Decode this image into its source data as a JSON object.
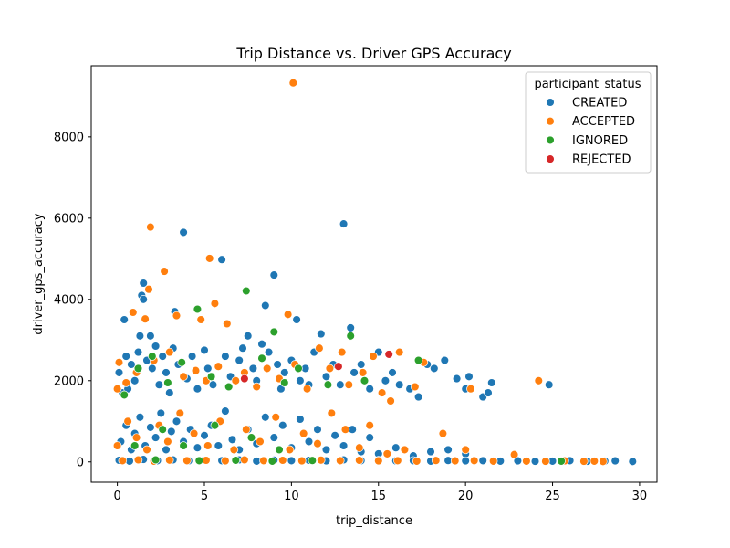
{
  "chart_data": {
    "type": "scatter",
    "title": "Trip Distance vs. Driver GPS Accuracy",
    "xlabel": "trip_distance",
    "ylabel": "driver_gps_accuracy",
    "xlim": [
      -1.5,
      31.0
    ],
    "ylim": [
      -500,
      9750
    ],
    "x_ticks": [
      0,
      5,
      10,
      15,
      20,
      25,
      30
    ],
    "y_ticks": [
      0,
      2000,
      4000,
      6000,
      8000
    ],
    "grid": false,
    "legend": {
      "title": "participant_status",
      "placement": "top-right",
      "entries": [
        "CREATED",
        "ACCEPTED",
        "IGNORED",
        "REJECTED"
      ]
    },
    "colors": {
      "CREATED": "#1f77b4",
      "ACCEPTED": "#ff7f0e",
      "IGNORED": "#2ca02c",
      "REJECTED": "#d62728"
    },
    "series": [
      {
        "name": "CREATED",
        "points": [
          [
            0.1,
            2200
          ],
          [
            0.3,
            1700
          ],
          [
            0.4,
            3500
          ],
          [
            0.5,
            2600
          ],
          [
            0.6,
            1800
          ],
          [
            0.8,
            2400
          ],
          [
            1.0,
            2000
          ],
          [
            1.2,
            2700
          ],
          [
            1.3,
            3100
          ],
          [
            1.4,
            4100
          ],
          [
            1.5,
            4400
          ],
          [
            1.5,
            4000
          ],
          [
            1.7,
            2500
          ],
          [
            1.9,
            3100
          ],
          [
            2.0,
            2300
          ],
          [
            2.2,
            2850
          ],
          [
            2.4,
            1900
          ],
          [
            2.6,
            2600
          ],
          [
            2.8,
            2200
          ],
          [
            3.0,
            1700
          ],
          [
            3.2,
            2800
          ],
          [
            3.3,
            3700
          ],
          [
            3.5,
            2400
          ],
          [
            3.8,
            5650
          ],
          [
            4.0,
            2050
          ],
          [
            4.3,
            2600
          ],
          [
            4.6,
            1800
          ],
          [
            5.0,
            2750
          ],
          [
            5.2,
            2300
          ],
          [
            5.5,
            1900
          ],
          [
            6.0,
            4980
          ],
          [
            6.2,
            2600
          ],
          [
            6.5,
            2100
          ],
          [
            7.0,
            2500
          ],
          [
            7.2,
            2800
          ],
          [
            7.5,
            3100
          ],
          [
            7.8,
            2300
          ],
          [
            8.0,
            2000
          ],
          [
            8.3,
            2900
          ],
          [
            8.5,
            3850
          ],
          [
            8.7,
            2700
          ],
          [
            9.0,
            4600
          ],
          [
            9.2,
            2400
          ],
          [
            9.4,
            1800
          ],
          [
            9.6,
            2200
          ],
          [
            10.0,
            2500
          ],
          [
            10.3,
            3500
          ],
          [
            10.5,
            2000
          ],
          [
            10.8,
            2300
          ],
          [
            11.0,
            1900
          ],
          [
            11.3,
            2700
          ],
          [
            11.7,
            3150
          ],
          [
            12.0,
            2100
          ],
          [
            12.4,
            2400
          ],
          [
            12.8,
            1900
          ],
          [
            13.0,
            5860
          ],
          [
            13.4,
            3300
          ],
          [
            13.6,
            2200
          ],
          [
            14.0,
            2400
          ],
          [
            14.5,
            1800
          ],
          [
            15.0,
            2700
          ],
          [
            15.4,
            2000
          ],
          [
            15.8,
            2200
          ],
          [
            16.2,
            1900
          ],
          [
            16.8,
            1800
          ],
          [
            17.3,
            1600
          ],
          [
            17.8,
            2400
          ],
          [
            18.2,
            2300
          ],
          [
            18.8,
            2500
          ],
          [
            19.5,
            2050
          ],
          [
            20.0,
            1800
          ],
          [
            20.2,
            2100
          ],
          [
            21.0,
            1600
          ],
          [
            21.3,
            1700
          ],
          [
            21.5,
            1950
          ],
          [
            24.8,
            1900
          ],
          [
            0.2,
            500
          ],
          [
            0.5,
            900
          ],
          [
            0.8,
            300
          ],
          [
            1.0,
            700
          ],
          [
            1.3,
            1100
          ],
          [
            1.6,
            400
          ],
          [
            1.9,
            850
          ],
          [
            2.2,
            600
          ],
          [
            2.5,
            1200
          ],
          [
            2.8,
            300
          ],
          [
            3.1,
            750
          ],
          [
            3.4,
            1000
          ],
          [
            3.8,
            500
          ],
          [
            4.2,
            800
          ],
          [
            4.6,
            350
          ],
          [
            5.0,
            650
          ],
          [
            5.4,
            900
          ],
          [
            5.8,
            400
          ],
          [
            6.2,
            1250
          ],
          [
            6.6,
            550
          ],
          [
            7.0,
            300
          ],
          [
            7.5,
            800
          ],
          [
            8.0,
            450
          ],
          [
            8.5,
            1100
          ],
          [
            9.0,
            600
          ],
          [
            9.5,
            900
          ],
          [
            10.0,
            350
          ],
          [
            10.5,
            1050
          ],
          [
            11.0,
            500
          ],
          [
            11.5,
            800
          ],
          [
            12.0,
            300
          ],
          [
            12.5,
            650
          ],
          [
            13.0,
            400
          ],
          [
            13.5,
            800
          ],
          [
            14.0,
            250
          ],
          [
            14.5,
            600
          ],
          [
            15.0,
            200
          ],
          [
            16.0,
            350
          ],
          [
            17.0,
            150
          ],
          [
            18.0,
            250
          ],
          [
            19.0,
            300
          ],
          [
            20.0,
            200
          ],
          [
            0.1,
            40
          ],
          [
            0.7,
            20
          ],
          [
            1.5,
            60
          ],
          [
            2.3,
            30
          ],
          [
            3.2,
            50
          ],
          [
            4.1,
            25
          ],
          [
            5.0,
            40
          ],
          [
            6.0,
            30
          ],
          [
            7.0,
            50
          ],
          [
            8.0,
            20
          ],
          [
            9.0,
            45
          ],
          [
            10.0,
            30
          ],
          [
            11.0,
            40
          ],
          [
            12.0,
            25
          ],
          [
            13.0,
            50
          ],
          [
            14.0,
            30
          ],
          [
            15.0,
            40
          ],
          [
            16.0,
            25
          ],
          [
            17.0,
            30
          ],
          [
            18.0,
            20
          ],
          [
            19.0,
            35
          ],
          [
            20.0,
            25
          ],
          [
            21.0,
            30
          ],
          [
            22.0,
            20
          ],
          [
            23.0,
            25
          ],
          [
            24.0,
            15
          ],
          [
            25.0,
            20
          ],
          [
            26.0,
            30
          ],
          [
            27.0,
            15
          ],
          [
            28.0,
            20
          ],
          [
            28.6,
            25
          ],
          [
            29.6,
            10
          ]
        ]
      },
      {
        "name": "ACCEPTED",
        "points": [
          [
            0.0,
            1800
          ],
          [
            0.1,
            2450
          ],
          [
            0.5,
            1950
          ],
          [
            0.9,
            3680
          ],
          [
            1.1,
            2200
          ],
          [
            1.6,
            3520
          ],
          [
            1.8,
            4250
          ],
          [
            1.9,
            5780
          ],
          [
            2.1,
            2500
          ],
          [
            2.7,
            4690
          ],
          [
            3.0,
            2700
          ],
          [
            3.4,
            3600
          ],
          [
            3.8,
            2100
          ],
          [
            4.5,
            2250
          ],
          [
            4.8,
            3500
          ],
          [
            5.1,
            2000
          ],
          [
            5.3,
            5010
          ],
          [
            5.6,
            3900
          ],
          [
            5.8,
            2350
          ],
          [
            6.3,
            3400
          ],
          [
            6.8,
            2000
          ],
          [
            7.3,
            2200
          ],
          [
            8.0,
            1850
          ],
          [
            8.6,
            2300
          ],
          [
            9.3,
            2050
          ],
          [
            9.8,
            3630
          ],
          [
            10.1,
            9330
          ],
          [
            10.2,
            2400
          ],
          [
            10.9,
            1800
          ],
          [
            11.6,
            2800
          ],
          [
            12.2,
            2300
          ],
          [
            12.9,
            2700
          ],
          [
            13.3,
            1900
          ],
          [
            14.1,
            2200
          ],
          [
            14.7,
            2600
          ],
          [
            15.2,
            1700
          ],
          [
            15.7,
            1500
          ],
          [
            16.2,
            2700
          ],
          [
            17.1,
            1850
          ],
          [
            17.6,
            2450
          ],
          [
            20.3,
            1800
          ],
          [
            24.2,
            2000
          ],
          [
            0.0,
            400
          ],
          [
            0.6,
            1000
          ],
          [
            1.1,
            600
          ],
          [
            1.7,
            300
          ],
          [
            2.4,
            900
          ],
          [
            2.9,
            500
          ],
          [
            3.6,
            1200
          ],
          [
            4.4,
            700
          ],
          [
            5.2,
            400
          ],
          [
            5.9,
            1000
          ],
          [
            6.7,
            300
          ],
          [
            7.4,
            800
          ],
          [
            8.2,
            500
          ],
          [
            9.1,
            1100
          ],
          [
            9.9,
            300
          ],
          [
            10.7,
            700
          ],
          [
            11.5,
            450
          ],
          [
            12.3,
            1200
          ],
          [
            13.1,
            800
          ],
          [
            13.9,
            350
          ],
          [
            14.5,
            900
          ],
          [
            15.5,
            200
          ],
          [
            16.5,
            300
          ],
          [
            18.7,
            700
          ],
          [
            20.0,
            300
          ],
          [
            0.3,
            30
          ],
          [
            1.2,
            50
          ],
          [
            2.1,
            20
          ],
          [
            3.0,
            45
          ],
          [
            4.0,
            30
          ],
          [
            5.1,
            40
          ],
          [
            6.2,
            25
          ],
          [
            7.3,
            50
          ],
          [
            8.4,
            30
          ],
          [
            9.5,
            40
          ],
          [
            10.6,
            25
          ],
          [
            11.7,
            45
          ],
          [
            12.8,
            30
          ],
          [
            13.9,
            40
          ],
          [
            15.0,
            25
          ],
          [
            16.1,
            30
          ],
          [
            17.2,
            20
          ],
          [
            18.3,
            35
          ],
          [
            19.4,
            25
          ],
          [
            20.5,
            30
          ],
          [
            21.6,
            20
          ],
          [
            22.8,
            180
          ],
          [
            23.5,
            20
          ],
          [
            24.6,
            15
          ],
          [
            25.7,
            25
          ],
          [
            26.8,
            15
          ],
          [
            27.4,
            20
          ],
          [
            27.9,
            10
          ]
        ]
      },
      {
        "name": "IGNORED",
        "points": [
          [
            0.4,
            1650
          ],
          [
            1.2,
            2300
          ],
          [
            2.0,
            2600
          ],
          [
            2.9,
            1950
          ],
          [
            3.7,
            2450
          ],
          [
            4.6,
            3760
          ],
          [
            5.4,
            2100
          ],
          [
            6.4,
            1850
          ],
          [
            7.4,
            4210
          ],
          [
            8.3,
            2550
          ],
          [
            9.0,
            3200
          ],
          [
            9.6,
            1950
          ],
          [
            10.4,
            2300
          ],
          [
            12.1,
            1900
          ],
          [
            13.4,
            3100
          ],
          [
            14.2,
            2000
          ],
          [
            17.3,
            2500
          ],
          [
            1.0,
            400
          ],
          [
            2.6,
            800
          ],
          [
            3.8,
            400
          ],
          [
            5.6,
            900
          ],
          [
            7.7,
            600
          ],
          [
            9.3,
            300
          ],
          [
            2.2,
            50
          ],
          [
            4.7,
            30
          ],
          [
            6.8,
            40
          ],
          [
            8.9,
            20
          ],
          [
            11.2,
            35
          ],
          [
            25.5,
            20
          ]
        ]
      },
      {
        "name": "REJECTED",
        "points": [
          [
            15.6,
            2650
          ],
          [
            12.7,
            2350
          ],
          [
            7.3,
            2050
          ]
        ]
      }
    ]
  }
}
